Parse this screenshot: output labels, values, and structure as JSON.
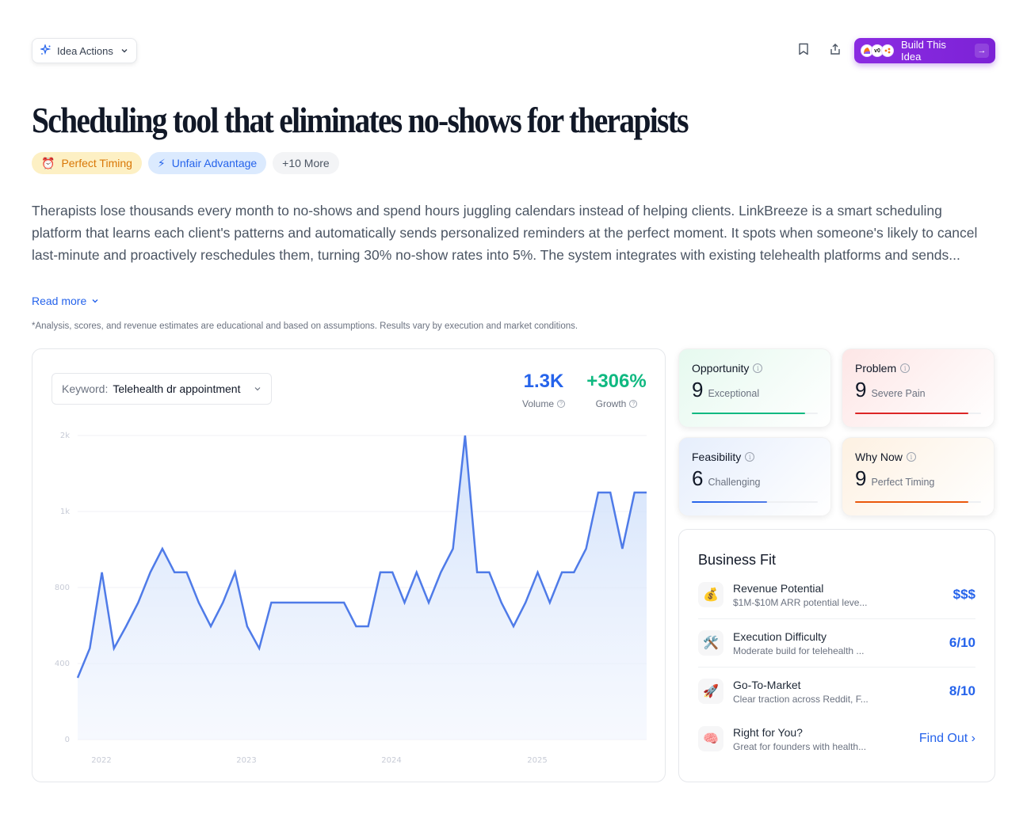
{
  "toolbar": {
    "idea_actions_label": "Idea Actions",
    "bookmark_icon": "bookmark-icon",
    "share_icon": "share-icon",
    "build_label": "Build This Idea",
    "build_logos": [
      "logo-1",
      "v0",
      "logo-3"
    ]
  },
  "idea": {
    "title": "Scheduling tool that eliminates no-shows for therapists",
    "tags": [
      {
        "icon": "⏰",
        "label": "Perfect Timing"
      },
      {
        "icon": "⚡",
        "label": "Unfair Advantage"
      },
      {
        "icon": "",
        "label": "+10 More"
      }
    ],
    "description": "Therapists lose thousands every month to no-shows and spend hours juggling calendars instead of helping clients. LinkBreeze is a smart scheduling platform that learns each client's patterns and automatically sends personalized reminders at the perfect moment. It spots when someone's likely to cancel last-minute and proactively reschedules them, turning 30% no-show rates into 5%. The system integrates with existing telehealth platforms and sends...",
    "read_more": "Read more",
    "disclaimer": "*Analysis, scores, and revenue estimates are educational and based on assumptions. Results vary by execution and market conditions."
  },
  "trend": {
    "keyword_label": "Keyword:",
    "keyword_value": "Telehealth dr appointment",
    "volume": {
      "value": "1.3K",
      "label": "Volume",
      "color": "#2563eb"
    },
    "growth": {
      "value": "+306%",
      "label": "Growth",
      "color": "#10b981"
    }
  },
  "chart_data": {
    "type": "area",
    "title": "",
    "xlabel": "",
    "ylabel": "",
    "y_ticks": [
      "0",
      "400",
      "800",
      "1k",
      "2k"
    ],
    "x_ticks": [
      "2022",
      "2023",
      "2024",
      "2025"
    ],
    "grid": true,
    "legend": "none",
    "line_color": "#4f7be8",
    "ylim": [
      0,
      2000
    ],
    "values": [
      325,
      480,
      840,
      480,
      596,
      721,
      840,
      902,
      840,
      840,
      721,
      596,
      721,
      840,
      596,
      480,
      721,
      721,
      721,
      721,
      721,
      721,
      721,
      596,
      596,
      840,
      840,
      721,
      840,
      721,
      840,
      902,
      2000,
      840,
      840,
      721,
      596,
      721,
      840,
      721,
      840,
      840,
      902,
      1250,
      1250,
      902,
      1250,
      1250
    ]
  },
  "scores": [
    {
      "label": "Opportunity",
      "value": "9",
      "desc": "Exceptional",
      "color": "#10b981",
      "pct": 90
    },
    {
      "label": "Problem",
      "value": "9",
      "desc": "Severe Pain",
      "color": "#dc2626",
      "pct": 90
    },
    {
      "label": "Feasibility",
      "value": "6",
      "desc": "Challenging",
      "color": "#2563eb",
      "pct": 60
    },
    {
      "label": "Why Now",
      "value": "9",
      "desc": "Perfect Timing",
      "color": "#ea580c",
      "pct": 90
    }
  ],
  "business_fit": {
    "title": "Business Fit",
    "rows": [
      {
        "icon": "💰",
        "name": "Revenue Potential",
        "sub": "$1M-$10M ARR potential leve...",
        "value": "$$$"
      },
      {
        "icon": "🛠️",
        "name": "Execution Difficulty",
        "sub": "Moderate build for telehealth ...",
        "value": "6/10"
      },
      {
        "icon": "🚀",
        "name": "Go-To-Market",
        "sub": "Clear traction across Reddit, F...",
        "value": "8/10"
      },
      {
        "icon": "🧠",
        "name": "Right for You?",
        "sub": "Great for founders with health...",
        "value": "Find Out ›"
      }
    ]
  }
}
